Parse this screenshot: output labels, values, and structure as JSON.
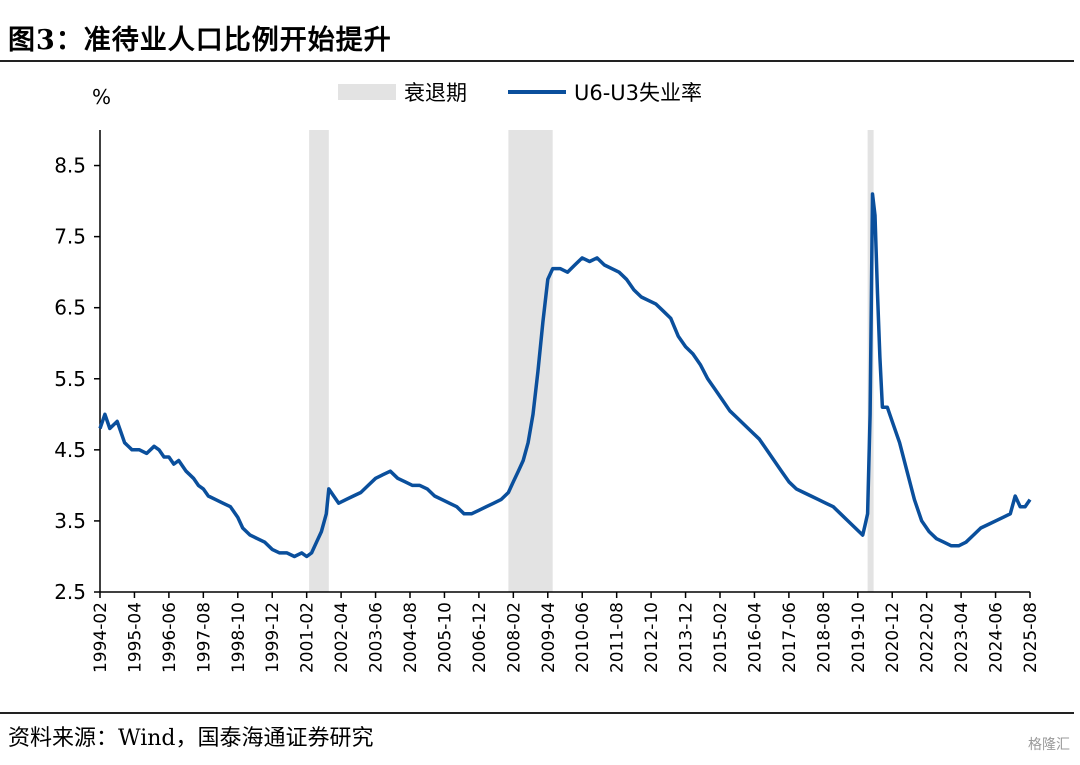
{
  "header": {
    "title": "图3：准待业人口比例开始提升"
  },
  "footer": {
    "source": "资料来源：Wind，国泰海通证券研究",
    "watermark": "格隆汇"
  },
  "colors": {
    "line": "#0a4f9c",
    "recession": "#e3e3e3"
  },
  "chart_data": {
    "type": "line",
    "ylabel": "%",
    "ylim": [
      2.5,
      9.0
    ],
    "y_ticks": [
      2.5,
      3.5,
      4.5,
      5.5,
      6.5,
      7.5,
      8.5
    ],
    "y_tick_labels": [
      "2.5",
      "3.5",
      "4.5",
      "5.5",
      "6.5",
      "7.5",
      "8.5"
    ],
    "x_range": [
      "1994-02",
      "2025-08"
    ],
    "x_tick_labels": [
      "1994-02",
      "1995-04",
      "1996-06",
      "1997-08",
      "1998-10",
      "1999-12",
      "2001-02",
      "2002-04",
      "2003-06",
      "2004-08",
      "2005-10",
      "2006-12",
      "2008-02",
      "2009-04",
      "2010-06",
      "2011-08",
      "2012-10",
      "2013-12",
      "2015-02",
      "2016-04",
      "2017-06",
      "2018-08",
      "2019-10",
      "2020-12",
      "2022-02",
      "2023-04",
      "2024-06",
      "2025-08"
    ],
    "grid": false,
    "legend_position": "top",
    "legend": [
      "衰退期",
      "U6-U3失业率"
    ],
    "recessions": [
      {
        "start": "2001-03",
        "end": "2001-11"
      },
      {
        "start": "2007-12",
        "end": "2009-06"
      },
      {
        "start": "2020-02",
        "end": "2020-04"
      }
    ],
    "series": [
      {
        "name": "U6-U3失业率",
        "points": [
          [
            "1994-02",
            4.8
          ],
          [
            "1994-04",
            5.0
          ],
          [
            "1994-06",
            4.8
          ],
          [
            "1994-09",
            4.9
          ],
          [
            "1994-12",
            4.6
          ],
          [
            "1995-03",
            4.5
          ],
          [
            "1995-06",
            4.5
          ],
          [
            "1995-09",
            4.45
          ],
          [
            "1995-12",
            4.55
          ],
          [
            "1996-02",
            4.5
          ],
          [
            "1996-04",
            4.4
          ],
          [
            "1996-06",
            4.4
          ],
          [
            "1996-08",
            4.3
          ],
          [
            "1996-10",
            4.35
          ],
          [
            "1997-01",
            4.2
          ],
          [
            "1997-04",
            4.1
          ],
          [
            "1997-06",
            4.0
          ],
          [
            "1997-08",
            3.95
          ],
          [
            "1997-10",
            3.85
          ],
          [
            "1998-01",
            3.8
          ],
          [
            "1998-04",
            3.75
          ],
          [
            "1998-07",
            3.7
          ],
          [
            "1998-10",
            3.55
          ],
          [
            "1998-12",
            3.4
          ],
          [
            "1999-03",
            3.3
          ],
          [
            "1999-06",
            3.25
          ],
          [
            "1999-09",
            3.2
          ],
          [
            "1999-12",
            3.1
          ],
          [
            "2000-03",
            3.05
          ],
          [
            "2000-06",
            3.05
          ],
          [
            "2000-09",
            3.0
          ],
          [
            "2000-12",
            3.05
          ],
          [
            "2001-02",
            3.0
          ],
          [
            "2001-04",
            3.05
          ],
          [
            "2001-06",
            3.2
          ],
          [
            "2001-08",
            3.35
          ],
          [
            "2001-10",
            3.6
          ],
          [
            "2001-11",
            3.95
          ],
          [
            "2002-01",
            3.85
          ],
          [
            "2002-03",
            3.75
          ],
          [
            "2002-06",
            3.8
          ],
          [
            "2002-09",
            3.85
          ],
          [
            "2002-12",
            3.9
          ],
          [
            "2003-03",
            4.0
          ],
          [
            "2003-06",
            4.1
          ],
          [
            "2003-09",
            4.15
          ],
          [
            "2003-12",
            4.2
          ],
          [
            "2004-03",
            4.1
          ],
          [
            "2004-06",
            4.05
          ],
          [
            "2004-09",
            4.0
          ],
          [
            "2004-12",
            4.0
          ],
          [
            "2005-03",
            3.95
          ],
          [
            "2005-06",
            3.85
          ],
          [
            "2005-09",
            3.8
          ],
          [
            "2005-12",
            3.75
          ],
          [
            "2006-03",
            3.7
          ],
          [
            "2006-06",
            3.6
          ],
          [
            "2006-09",
            3.6
          ],
          [
            "2006-12",
            3.65
          ],
          [
            "2007-03",
            3.7
          ],
          [
            "2007-06",
            3.75
          ],
          [
            "2007-09",
            3.8
          ],
          [
            "2007-12",
            3.9
          ],
          [
            "2008-02",
            4.05
          ],
          [
            "2008-04",
            4.2
          ],
          [
            "2008-06",
            4.35
          ],
          [
            "2008-08",
            4.6
          ],
          [
            "2008-10",
            5.0
          ],
          [
            "2008-12",
            5.6
          ],
          [
            "2009-02",
            6.3
          ],
          [
            "2009-04",
            6.9
          ],
          [
            "2009-06",
            7.05
          ],
          [
            "2009-09",
            7.05
          ],
          [
            "2009-12",
            7.0
          ],
          [
            "2010-03",
            7.1
          ],
          [
            "2010-06",
            7.2
          ],
          [
            "2010-09",
            7.15
          ],
          [
            "2010-12",
            7.2
          ],
          [
            "2011-03",
            7.1
          ],
          [
            "2011-06",
            7.05
          ],
          [
            "2011-09",
            7.0
          ],
          [
            "2011-12",
            6.9
          ],
          [
            "2012-03",
            6.75
          ],
          [
            "2012-06",
            6.65
          ],
          [
            "2012-09",
            6.6
          ],
          [
            "2012-12",
            6.55
          ],
          [
            "2013-03",
            6.45
          ],
          [
            "2013-06",
            6.35
          ],
          [
            "2013-09",
            6.1
          ],
          [
            "2013-12",
            5.95
          ],
          [
            "2014-03",
            5.85
          ],
          [
            "2014-06",
            5.7
          ],
          [
            "2014-09",
            5.5
          ],
          [
            "2014-12",
            5.35
          ],
          [
            "2015-03",
            5.2
          ],
          [
            "2015-06",
            5.05
          ],
          [
            "2015-09",
            4.95
          ],
          [
            "2015-12",
            4.85
          ],
          [
            "2016-03",
            4.75
          ],
          [
            "2016-06",
            4.65
          ],
          [
            "2016-09",
            4.5
          ],
          [
            "2016-12",
            4.35
          ],
          [
            "2017-03",
            4.2
          ],
          [
            "2017-06",
            4.05
          ],
          [
            "2017-09",
            3.95
          ],
          [
            "2017-12",
            3.9
          ],
          [
            "2018-03",
            3.85
          ],
          [
            "2018-06",
            3.8
          ],
          [
            "2018-09",
            3.75
          ],
          [
            "2018-12",
            3.7
          ],
          [
            "2019-03",
            3.6
          ],
          [
            "2019-06",
            3.5
          ],
          [
            "2019-09",
            3.4
          ],
          [
            "2019-12",
            3.3
          ],
          [
            "2020-01",
            3.45
          ],
          [
            "2020-02",
            3.6
          ],
          [
            "2020-03",
            5.0
          ],
          [
            "2020-04",
            8.1
          ],
          [
            "2020-05",
            7.8
          ],
          [
            "2020-06",
            6.7
          ],
          [
            "2020-07",
            5.8
          ],
          [
            "2020-08",
            5.1
          ],
          [
            "2020-10",
            5.1
          ],
          [
            "2020-12",
            4.9
          ],
          [
            "2021-03",
            4.6
          ],
          [
            "2021-06",
            4.2
          ],
          [
            "2021-09",
            3.8
          ],
          [
            "2021-12",
            3.5
          ],
          [
            "2022-03",
            3.35
          ],
          [
            "2022-06",
            3.25
          ],
          [
            "2022-09",
            3.2
          ],
          [
            "2022-12",
            3.15
          ],
          [
            "2023-03",
            3.15
          ],
          [
            "2023-06",
            3.2
          ],
          [
            "2023-09",
            3.3
          ],
          [
            "2023-12",
            3.4
          ],
          [
            "2024-03",
            3.45
          ],
          [
            "2024-06",
            3.5
          ],
          [
            "2024-09",
            3.55
          ],
          [
            "2024-12",
            3.6
          ],
          [
            "2025-02",
            3.85
          ],
          [
            "2025-04",
            3.7
          ],
          [
            "2025-06",
            3.7
          ],
          [
            "2025-08",
            3.8
          ]
        ]
      }
    ]
  }
}
